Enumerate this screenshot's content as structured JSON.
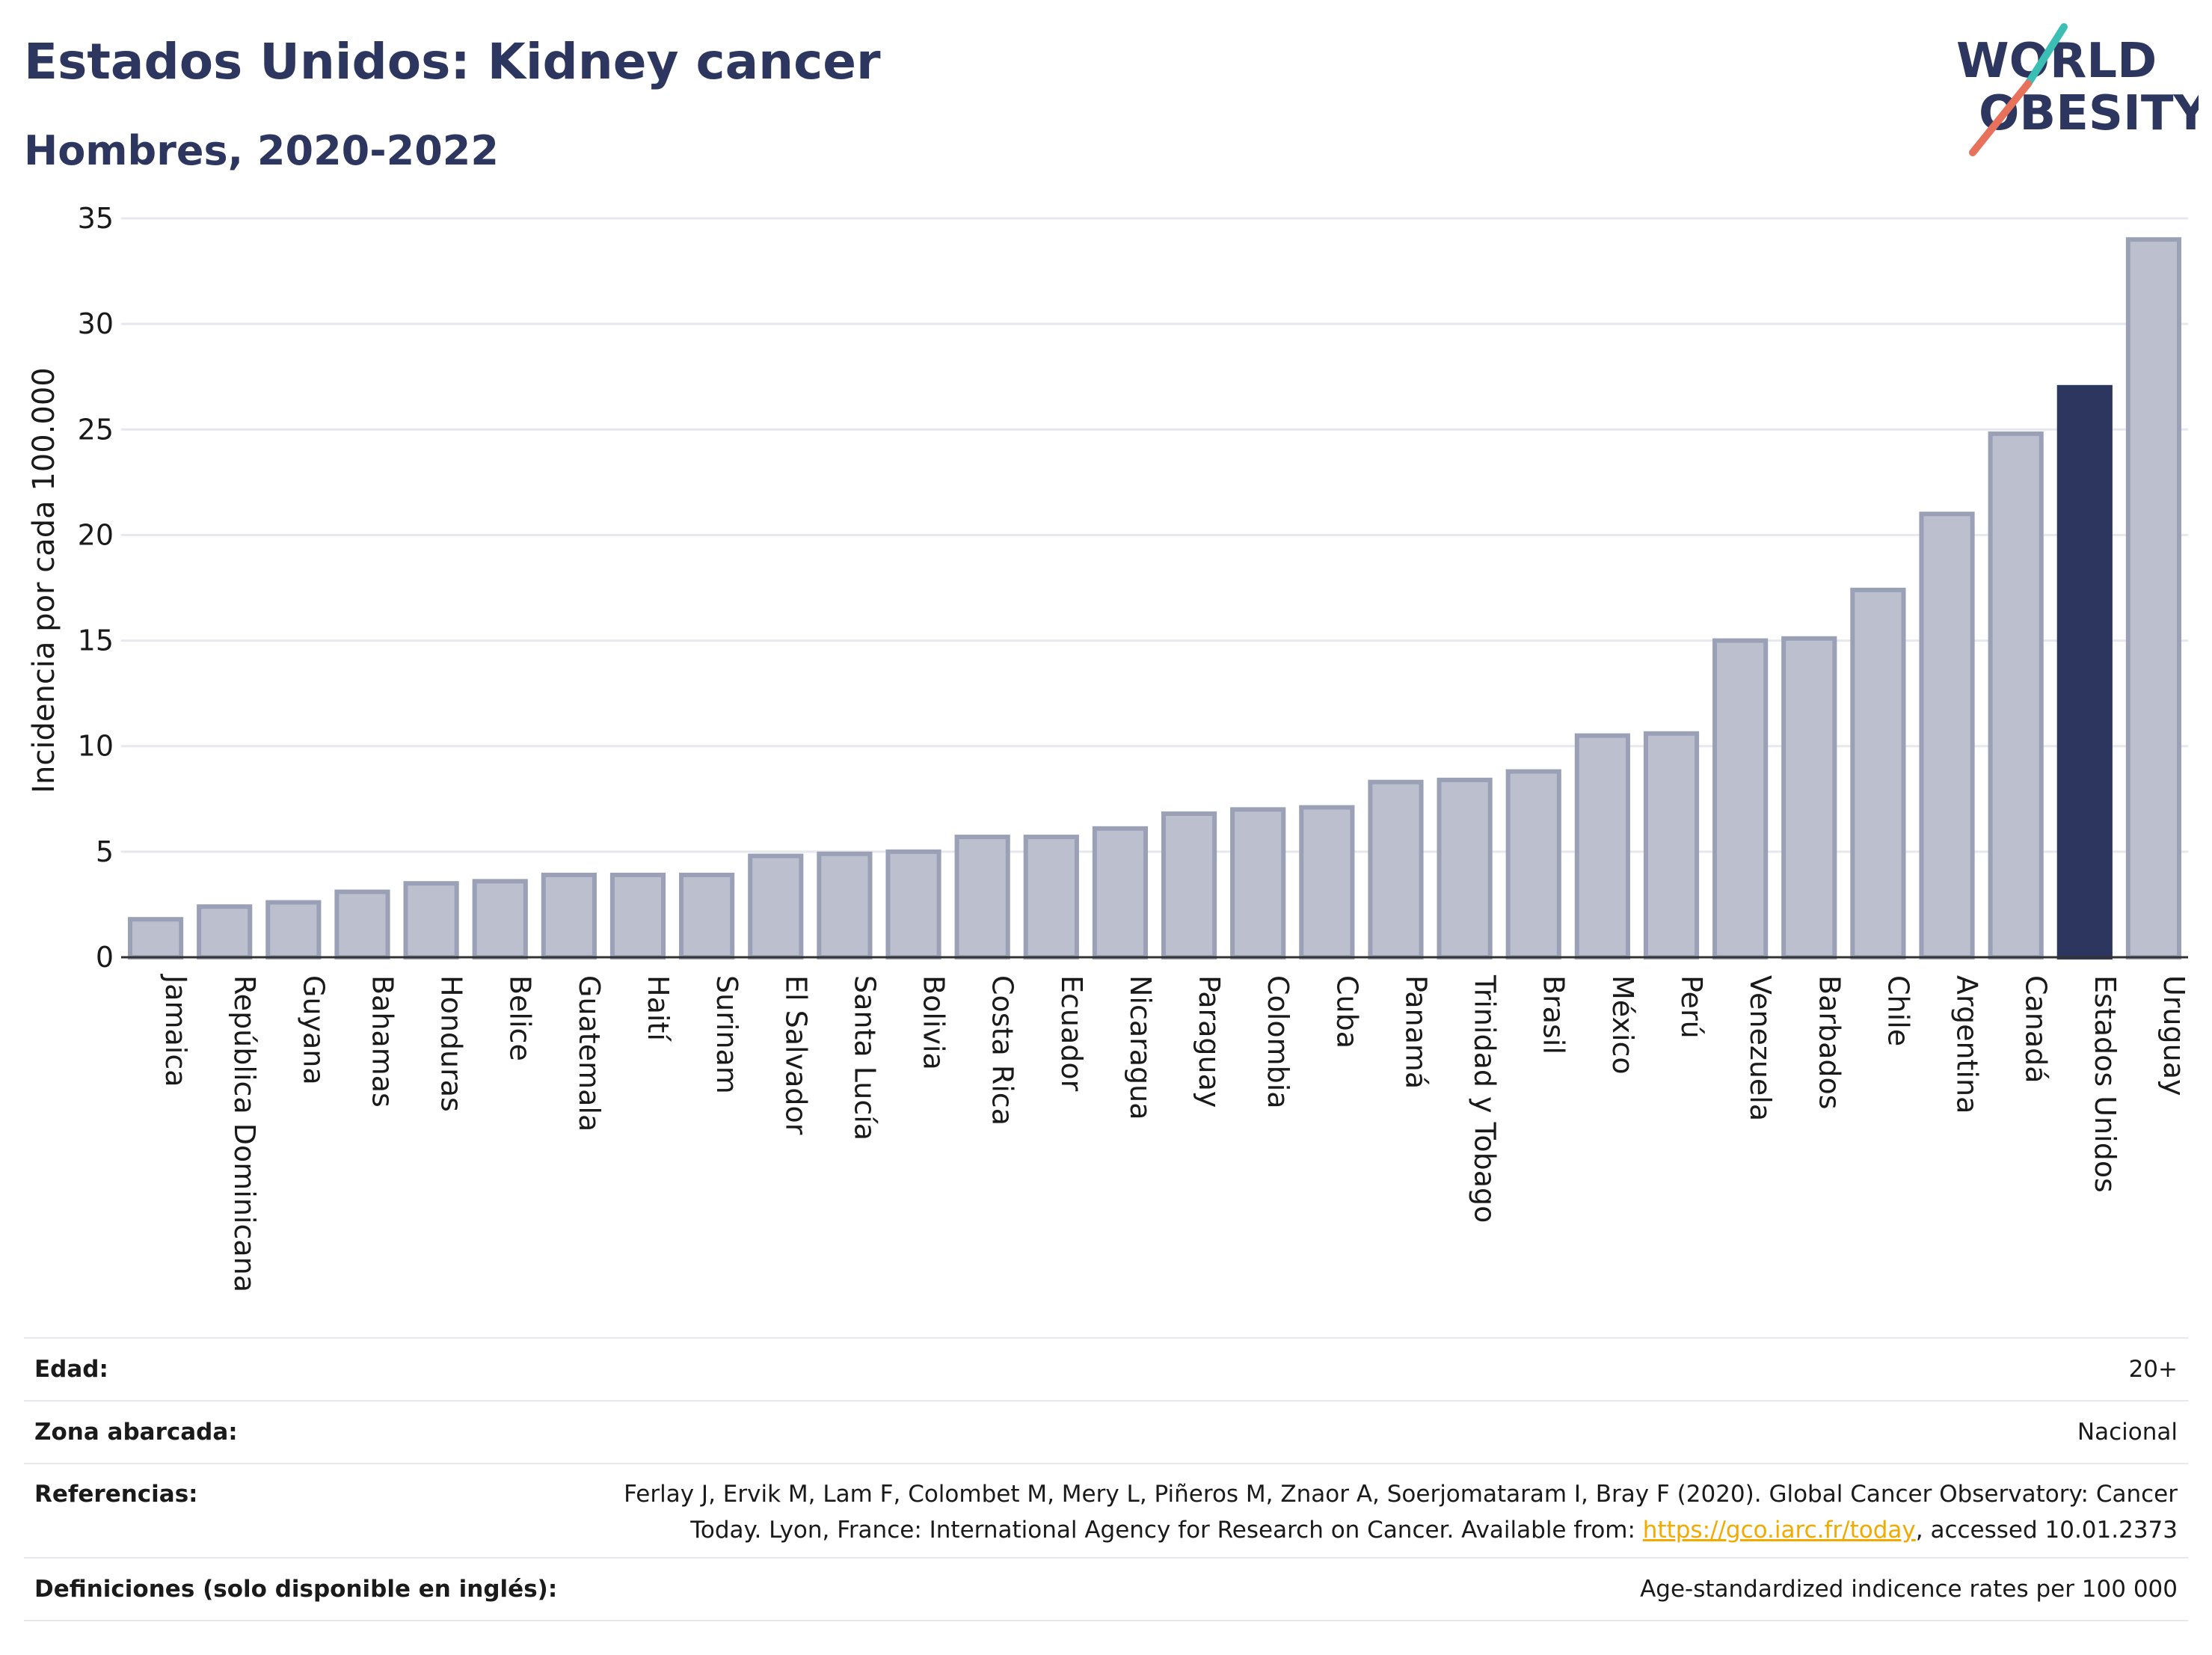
{
  "header": {
    "title": "Estados Unidos: Kidney cancer",
    "subtitle": "Hombres, 2020-2022"
  },
  "logo": {
    "line1": "WORLD",
    "line2": "OBESITY",
    "colors": {
      "text": "#2c365e",
      "teal": "#3bbfb4",
      "coral": "#e8715b"
    }
  },
  "chart_data": {
    "type": "bar",
    "title": "",
    "xlabel": "",
    "ylabel": "Incidencia por cada 100.000",
    "ylim": [
      0,
      35
    ],
    "yticks": [
      0,
      5,
      10,
      15,
      20,
      25,
      30,
      35
    ],
    "grid": true,
    "highlight": "Estados Unidos",
    "colors": {
      "bar": "#bcc0ce",
      "bar_edge": "#9aa0b6",
      "highlight": "#2c365e",
      "grid": "#e6e8ee",
      "axis": "#333333"
    },
    "categories": [
      "Jamaica",
      "República Dominicana",
      "Guyana",
      "Bahamas",
      "Honduras",
      "Belice",
      "Guatemala",
      "Haití",
      "Surinam",
      "El Salvador",
      "Santa Lucía",
      "Bolivia",
      "Costa Rica",
      "Ecuador",
      "Nicaragua",
      "Paraguay",
      "Colombia",
      "Cuba",
      "Panamá",
      "Trinidad y Tobago",
      "Brasil",
      "México",
      "Perú",
      "Venezuela",
      "Barbados",
      "Chile",
      "Argentina",
      "Canadá",
      "Estados Unidos",
      "Uruguay"
    ],
    "values": [
      1.8,
      2.4,
      2.6,
      3.1,
      3.5,
      3.6,
      3.9,
      3.9,
      3.9,
      4.8,
      4.9,
      5.0,
      5.7,
      5.7,
      6.1,
      6.8,
      7.0,
      7.1,
      8.3,
      8.4,
      8.8,
      10.5,
      10.6,
      15.0,
      15.1,
      17.4,
      21.0,
      24.8,
      27.0,
      34.0
    ]
  },
  "meta": {
    "rows": [
      {
        "label": "Edad:",
        "value": "20+"
      },
      {
        "label": "Zona abarcada:",
        "value": "Nacional"
      },
      {
        "label": "Referencias:",
        "value_line1": "Ferlay J, Ervik M, Lam F, Colombet M, Mery L, Piñeros M, Znaor A, Soerjomataram I, Bray F (2020). Global Cancer Observatory: Cancer",
        "value_line2_pre": "Today. Lyon, France: International Agency for Research on Cancer. Available from: ",
        "link_text": "https://gco.iarc.fr/today",
        "value_line2_post": ", accessed 10.01.2373"
      },
      {
        "label": "Definiciones (solo disponible en inglés):",
        "value": "Age-standardized indicence rates per 100 000"
      }
    ]
  }
}
